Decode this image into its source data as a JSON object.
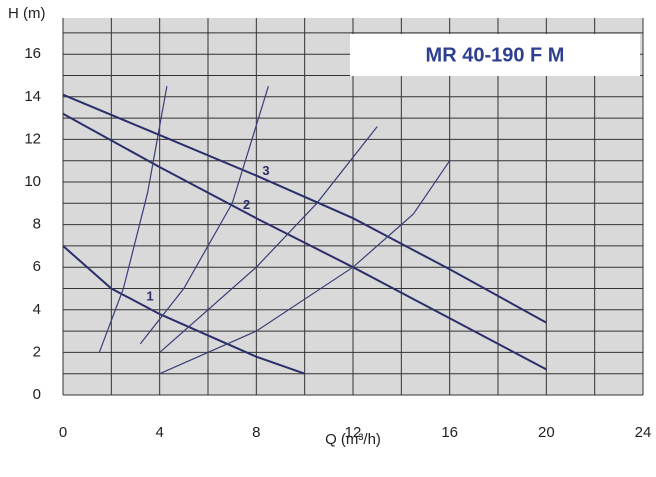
{
  "chart_data": {
    "type": "line",
    "title": "MR 40-190 F M",
    "xlabel": "Q (m³/h)",
    "ylabel": "H (m)",
    "xlim": [
      0,
      24
    ],
    "xticks": [
      0,
      4,
      8,
      12,
      16,
      20,
      24
    ],
    "ylim": [
      0,
      17.7
    ],
    "yticks": [
      0,
      2,
      4,
      6,
      8,
      10,
      12,
      14,
      16
    ],
    "x_gridlines": [
      0,
      2,
      4,
      6,
      8,
      10,
      12,
      14,
      16,
      18,
      20,
      22,
      24
    ],
    "y_gridlines": [
      0,
      1,
      2,
      3,
      4,
      5,
      6,
      7,
      8,
      9,
      10,
      11,
      12,
      13,
      14,
      15,
      16,
      17
    ],
    "grid": true,
    "series": [
      {
        "name": "1",
        "color": "#2b2f6b",
        "x": [
          0,
          2,
          4,
          6,
          8,
          10
        ],
        "values": [
          7,
          5,
          3.8,
          2.8,
          1.8,
          1.0
        ],
        "label_at": [
          3.6,
          4.6
        ]
      },
      {
        "name": "2",
        "color": "#2b2f6b",
        "x": [
          0,
          4,
          8,
          12,
          16,
          20
        ],
        "values": [
          13.2,
          10.7,
          8.3,
          6,
          3.6,
          1.2
        ],
        "label_at": [
          7.6,
          8.9
        ]
      },
      {
        "name": "3",
        "color": "#2b2f6b",
        "x": [
          0,
          4,
          8,
          12,
          16,
          20
        ],
        "values": [
          14.1,
          12.2,
          10.3,
          8.3,
          5.9,
          3.4
        ],
        "label_at": [
          8.4,
          10.5
        ]
      },
      {
        "color": "#3a3f78",
        "x": [
          1.5,
          2.5,
          3.5,
          4.3
        ],
        "values": [
          2,
          5,
          9.5,
          14.5
        ]
      },
      {
        "color": "#3a3f78",
        "x": [
          3.2,
          5,
          7,
          8.5
        ],
        "values": [
          2.4,
          5,
          9,
          14.5
        ]
      },
      {
        "color": "#3a3f78",
        "x": [
          4,
          8,
          10.5,
          13
        ],
        "values": [
          2,
          6,
          9,
          12.6
        ]
      },
      {
        "color": "#3a3f78",
        "x": [
          4,
          8,
          12,
          14.5,
          16
        ],
        "values": [
          1,
          3,
          6,
          8.5,
          11
        ]
      }
    ]
  }
}
